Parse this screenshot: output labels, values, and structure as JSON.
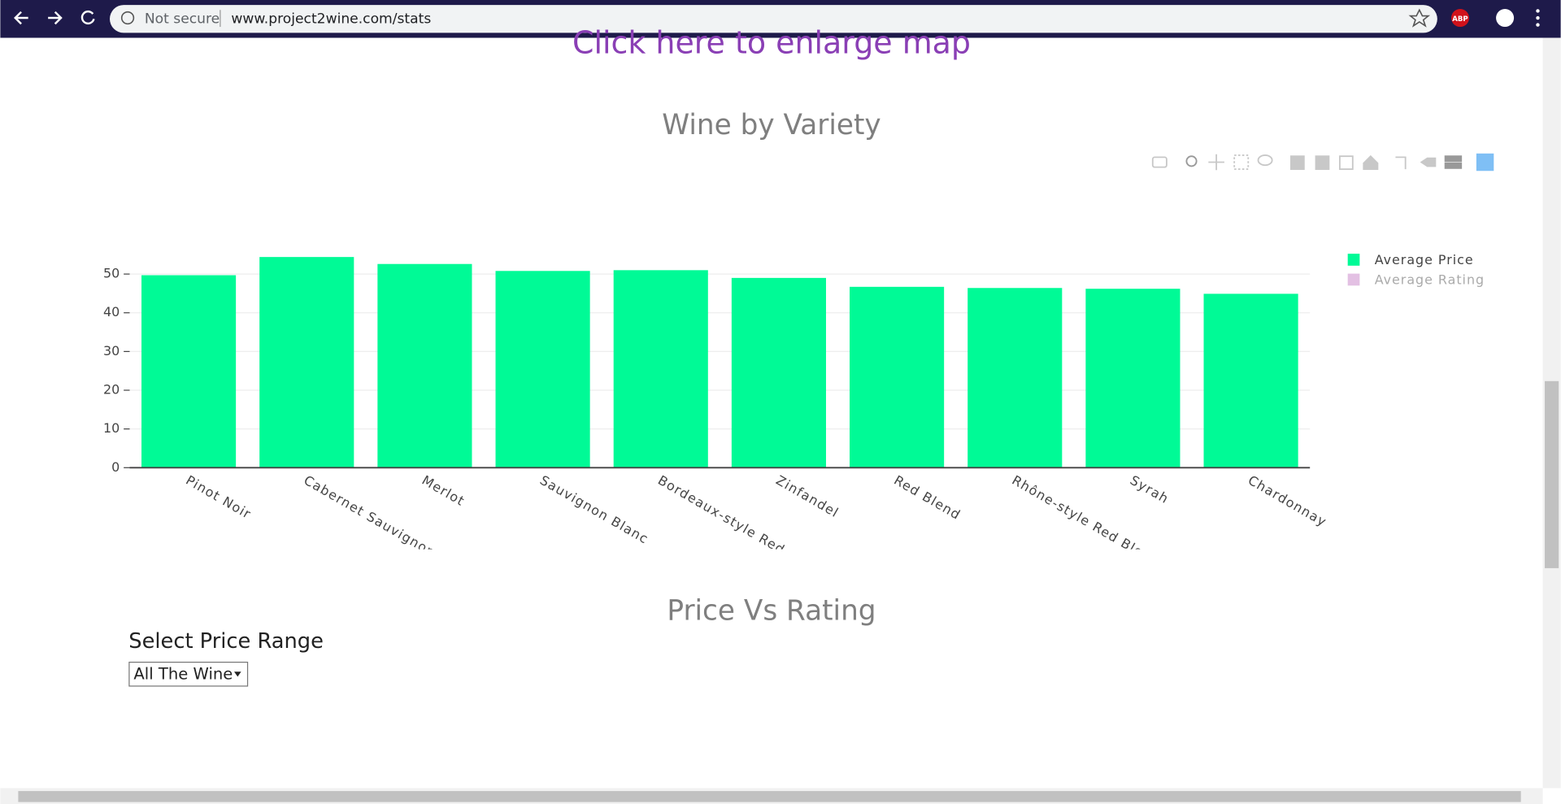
{
  "browser": {
    "security": "Not secure",
    "url": "www.project2wine.com/stats",
    "extension": "ABP"
  },
  "link": "Click here to enlarge map",
  "chart_data": {
    "type": "bar",
    "title": "Wine by Variety",
    "categories": [
      "Pinot Noir",
      "Cabernet Sauvignon",
      "Merlot",
      "Sauvignon Blanc",
      "Bordeaux-style Red Blend",
      "Zinfandel",
      "Red Blend",
      "Rhône-style Red Blend",
      "Syrah",
      "Chardonnay"
    ],
    "series": [
      {
        "name": "Average Price",
        "color": "#00fa96",
        "visible": true,
        "values": [
          49.7,
          54.4,
          52.6,
          50.8,
          51.0,
          49.0,
          46.7,
          46.4,
          46.2,
          44.9
        ]
      },
      {
        "name": "Average Rating",
        "color": "#c882c8",
        "visible": false
      }
    ],
    "ylim": [
      0,
      57.3
    ],
    "yticks": [
      0,
      10,
      20,
      30,
      40,
      50
    ],
    "grid": true,
    "legend": "right"
  },
  "section": {
    "title": "Price Vs Rating",
    "label": "Select Price Range",
    "select": "All The Wine"
  }
}
